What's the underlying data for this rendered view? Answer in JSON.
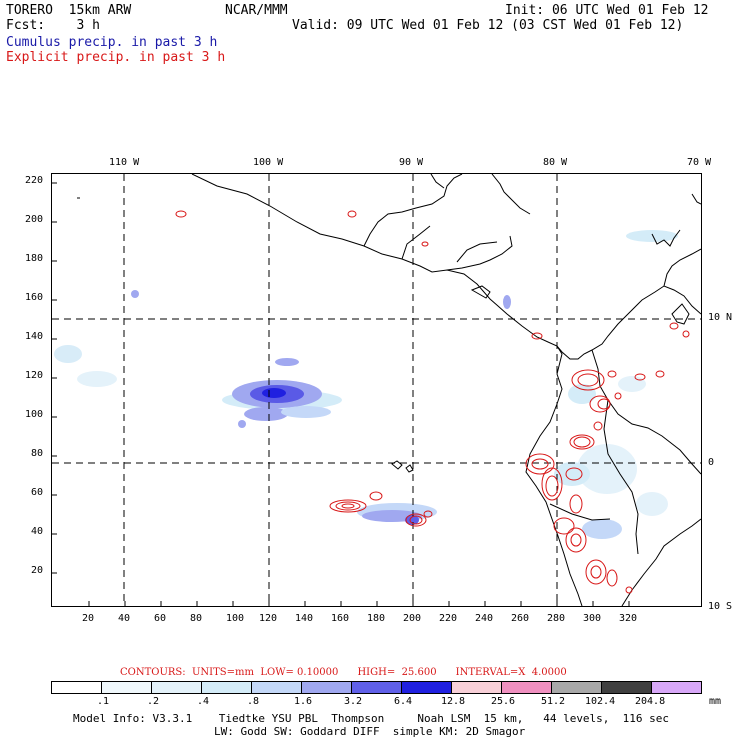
{
  "header": {
    "model": "TORERO  15km ARW",
    "org": "NCAR/MMM",
    "init": "Init: 06 UTC Wed 01 Feb 12",
    "fcst": "Fcst:    3 h",
    "valid": "Valid: 09 UTC Wed 01 Feb 12 (03 CST Wed 01 Feb 12)",
    "cumulus": "Cumulus precip. in past 3 h",
    "explicit": "Explicit precip. in past 3 h",
    "cumulus_color": "#1a1aa8",
    "explicit_color": "#d81818"
  },
  "map": {
    "top_ticks": [
      "110 W",
      "100 W",
      "90 W",
      "80 W",
      "70 W"
    ],
    "right_ticks": [
      "10 N",
      "0",
      "10 S"
    ],
    "left_ticks": [
      "220",
      "200",
      "180",
      "160",
      "140",
      "120",
      "100",
      "80",
      "60",
      "40",
      "20"
    ],
    "bottom_ticks": [
      "20",
      "40",
      "60",
      "80",
      "100",
      "120",
      "140",
      "160",
      "180",
      "200",
      "220",
      "240",
      "260",
      "280",
      "300",
      "320"
    ]
  },
  "legend": {
    "contours_line": "CONTOURS:  UNITS=mm  LOW= 0.10000      HIGH=  25.600      INTERVAL=X  4.0000",
    "unit": "mm",
    "labels": [
      ".1",
      ".2",
      ".4",
      ".8",
      "1.6",
      "3.2",
      "6.4",
      "12.8",
      "25.6",
      "51.2",
      "102.4",
      "204.8"
    ],
    "colors": [
      "#ffffff",
      "#f0f8fc",
      "#e4f2fa",
      "#d4ecf8",
      "#c4d8f8",
      "#a0a8f0",
      "#6060e8",
      "#2020e0",
      "#f8d0d8",
      "#f090c0",
      "#a8a8a8",
      "#404040",
      "#d8a8f8"
    ]
  },
  "footer": {
    "line1": "Model Info: V3.3.1    Tiedtke YSU PBL  Thompson     Noah LSM  15 km,   44 levels,  116 sec",
    "line2": "LW: Godd SW: Goddard DIFF  simple KM: 2D Smagor"
  }
}
